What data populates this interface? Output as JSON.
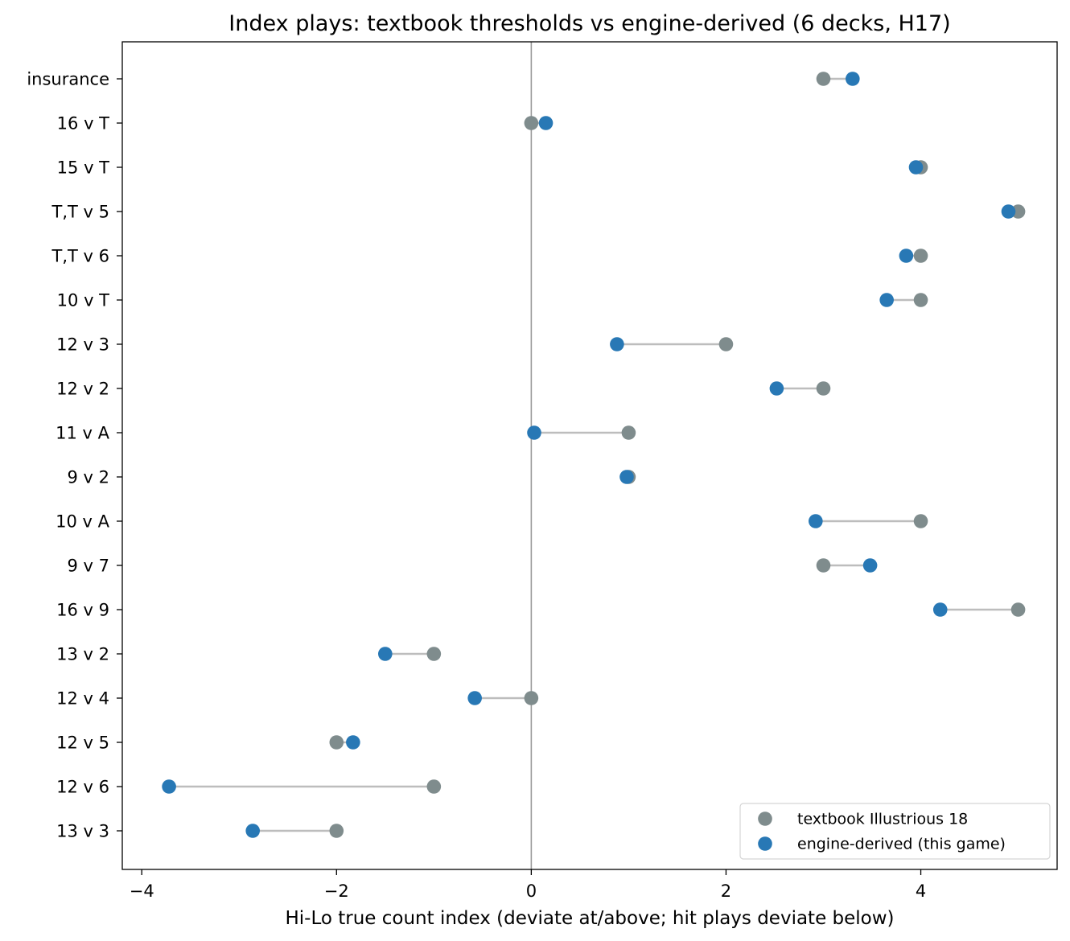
{
  "chart_data": {
    "type": "scatter",
    "title": "Index plays: textbook thresholds vs engine-derived (6 decks, H17)",
    "xlabel": "Hi-Lo true count index (deviate at/above; hit plays deviate below)",
    "ylabel": "",
    "xlim": [
      -4.2,
      5.4
    ],
    "xticks": [
      -4,
      -2,
      0,
      2,
      4
    ],
    "xtick_labels": [
      "−4",
      "−2",
      "0",
      "2",
      "4"
    ],
    "categories": [
      "insurance",
      "16 v T",
      "15 v T",
      "T,T v 5",
      "T,T v 6",
      "10 v T",
      "12 v 3",
      "12 v 2",
      "11 v A",
      "9 v 2",
      "10 v A",
      "9 v 7",
      "16 v 9",
      "13 v 2",
      "12 v 4",
      "12 v 5",
      "12 v 6",
      "13 v 3"
    ],
    "series": [
      {
        "name": "textbook Illustrious 18",
        "color": "#7f8c8d",
        "values": [
          3,
          0,
          4,
          5,
          4,
          4,
          2,
          3,
          1,
          1,
          4,
          3,
          5,
          -1,
          0,
          -2,
          -1,
          -2
        ]
      },
      {
        "name": "engine-derived (this game)",
        "color": "#2878b5",
        "values": [
          3.3,
          0.15,
          3.95,
          4.9,
          3.85,
          3.65,
          0.88,
          2.52,
          0.03,
          0.98,
          2.92,
          3.48,
          4.2,
          -1.5,
          -0.58,
          -1.83,
          -3.72,
          -2.86
        ]
      }
    ],
    "connector_color": "#bdbdbd",
    "reference_line": {
      "x": 0,
      "color": "#999999"
    },
    "grid": false,
    "legend_position": "lower-right"
  }
}
